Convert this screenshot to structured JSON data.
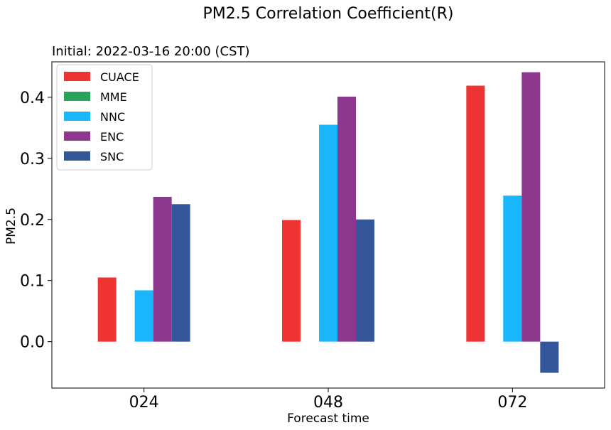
{
  "chart_data": {
    "type": "bar",
    "title": "PM2.5 Correlation Coefficient(R)",
    "subtitle": "Initial: 2022-03-16 20:00 (CST)",
    "xlabel": "Forecast time",
    "ylabel": "PM2.5",
    "categories": [
      "024",
      "048",
      "072"
    ],
    "series": [
      {
        "name": "CUACE",
        "color": "#ee3432",
        "values": [
          0.105,
          0.199,
          0.419
        ]
      },
      {
        "name": "MME",
        "color": "#28a45a",
        "values": [
          0.0,
          0.0,
          0.0
        ]
      },
      {
        "name": "NNC",
        "color": "#19b6fb",
        "values": [
          0.084,
          0.355,
          0.239
        ]
      },
      {
        "name": "ENC",
        "color": "#8e378e",
        "values": [
          0.237,
          0.401,
          0.441
        ]
      },
      {
        "name": "SNC",
        "color": "#34569b",
        "values": [
          0.225,
          0.2,
          -0.051
        ]
      }
    ],
    "ylim": [
      -0.076,
      0.458
    ],
    "yticks": [
      0.0,
      0.1,
      0.2,
      0.3,
      0.4
    ],
    "ytick_labels": [
      "0.0",
      "0.1",
      "0.2",
      "0.3",
      "0.4"
    ],
    "grid": false,
    "legend_position": "upper-left"
  }
}
